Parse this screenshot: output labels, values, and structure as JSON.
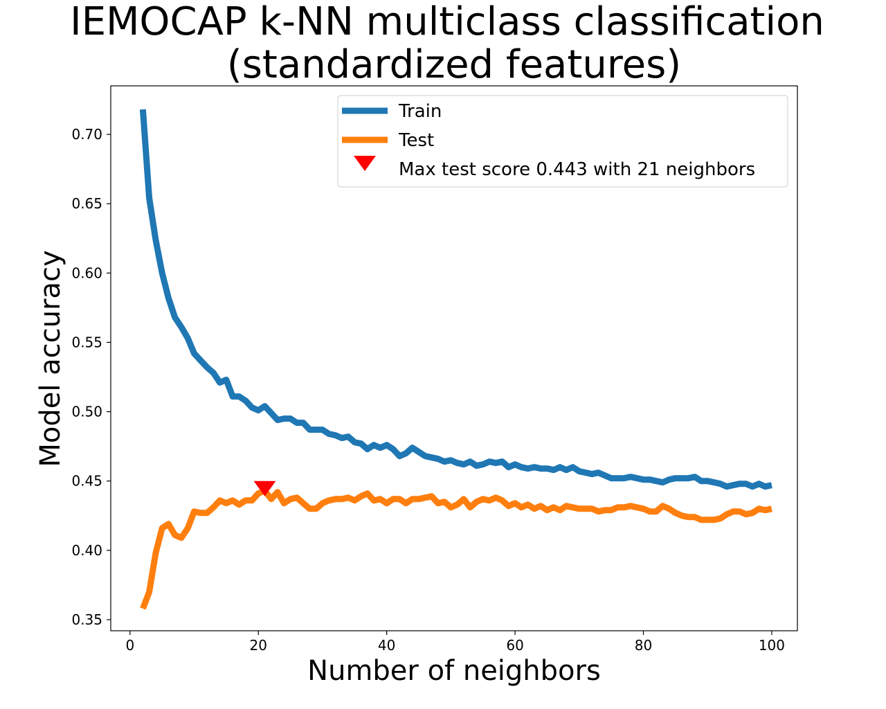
{
  "chart_data": {
    "type": "line",
    "title": "IEMOCAP k-NN multiclass classification",
    "subtitle": "(standardized features)",
    "xlabel": "Number of neighbors",
    "ylabel": "Model accuracy",
    "xlim": [
      -3,
      104
    ],
    "ylim": [
      0.342,
      0.735
    ],
    "x_ticks": [
      0,
      20,
      40,
      60,
      80,
      100
    ],
    "x_tick_labels": [
      "0",
      "20",
      "40",
      "60",
      "80",
      "100"
    ],
    "y_ticks": [
      0.35,
      0.4,
      0.45,
      0.5,
      0.55,
      0.6,
      0.65,
      0.7
    ],
    "y_tick_labels": [
      "0.35",
      "0.40",
      "0.45",
      "0.50",
      "0.55",
      "0.60",
      "0.65",
      "0.70"
    ],
    "grid": false,
    "legend_position": "top-right",
    "series": [
      {
        "name": "Train",
        "color": "#1f77b4",
        "x": [
          2,
          3,
          4,
          5,
          6,
          7,
          8,
          9,
          10,
          11,
          12,
          13,
          14,
          15,
          16,
          17,
          18,
          19,
          20,
          21,
          22,
          23,
          24,
          25,
          26,
          27,
          28,
          29,
          30,
          31,
          32,
          33,
          34,
          35,
          36,
          37,
          38,
          39,
          40,
          41,
          42,
          43,
          44,
          45,
          46,
          47,
          48,
          49,
          50,
          51,
          52,
          53,
          54,
          55,
          56,
          57,
          58,
          59,
          60,
          61,
          62,
          63,
          64,
          65,
          66,
          67,
          68,
          69,
          70,
          71,
          72,
          73,
          74,
          75,
          76,
          77,
          78,
          79,
          80,
          81,
          82,
          83,
          84,
          85,
          86,
          87,
          88,
          89,
          90,
          91,
          92,
          93,
          94,
          95,
          96,
          97,
          98,
          99,
          100
        ],
        "values": [
          0.718,
          0.654,
          0.624,
          0.6,
          0.582,
          0.568,
          0.561,
          0.553,
          0.542,
          0.537,
          0.532,
          0.528,
          0.521,
          0.523,
          0.511,
          0.511,
          0.508,
          0.503,
          0.501,
          0.504,
          0.499,
          0.494,
          0.495,
          0.495,
          0.492,
          0.492,
          0.487,
          0.487,
          0.487,
          0.484,
          0.483,
          0.481,
          0.482,
          0.478,
          0.477,
          0.473,
          0.476,
          0.474,
          0.476,
          0.473,
          0.468,
          0.47,
          0.474,
          0.471,
          0.468,
          0.467,
          0.466,
          0.464,
          0.465,
          0.463,
          0.462,
          0.464,
          0.461,
          0.462,
          0.464,
          0.463,
          0.464,
          0.46,
          0.462,
          0.46,
          0.459,
          0.46,
          0.459,
          0.459,
          0.458,
          0.46,
          0.458,
          0.46,
          0.457,
          0.456,
          0.455,
          0.456,
          0.454,
          0.452,
          0.452,
          0.452,
          0.453,
          0.452,
          0.451,
          0.451,
          0.45,
          0.449,
          0.451,
          0.452,
          0.452,
          0.452,
          0.453,
          0.45,
          0.45,
          0.449,
          0.448,
          0.446,
          0.447,
          0.448,
          0.448,
          0.446,
          0.448,
          0.446,
          0.447
        ]
      },
      {
        "name": "Test",
        "color": "#ff7f0e",
        "x": [
          2,
          3,
          4,
          5,
          6,
          7,
          8,
          9,
          10,
          11,
          12,
          13,
          14,
          15,
          16,
          17,
          18,
          19,
          20,
          21,
          22,
          23,
          24,
          25,
          26,
          27,
          28,
          29,
          30,
          31,
          32,
          33,
          34,
          35,
          36,
          37,
          38,
          39,
          40,
          41,
          42,
          43,
          44,
          45,
          46,
          47,
          48,
          49,
          50,
          51,
          52,
          53,
          54,
          55,
          56,
          57,
          58,
          59,
          60,
          61,
          62,
          63,
          64,
          65,
          66,
          67,
          68,
          69,
          70,
          71,
          72,
          73,
          74,
          75,
          76,
          77,
          78,
          79,
          80,
          81,
          82,
          83,
          84,
          85,
          86,
          87,
          88,
          89,
          90,
          91,
          92,
          93,
          94,
          95,
          96,
          97,
          98,
          99,
          100
        ],
        "values": [
          0.358,
          0.37,
          0.398,
          0.416,
          0.419,
          0.411,
          0.409,
          0.416,
          0.428,
          0.427,
          0.427,
          0.431,
          0.436,
          0.434,
          0.436,
          0.433,
          0.436,
          0.436,
          0.441,
          0.443,
          0.437,
          0.442,
          0.434,
          0.437,
          0.438,
          0.434,
          0.43,
          0.43,
          0.434,
          0.436,
          0.437,
          0.437,
          0.438,
          0.436,
          0.439,
          0.441,
          0.436,
          0.437,
          0.434,
          0.437,
          0.437,
          0.434,
          0.437,
          0.437,
          0.438,
          0.439,
          0.434,
          0.435,
          0.431,
          0.433,
          0.437,
          0.431,
          0.435,
          0.437,
          0.436,
          0.438,
          0.436,
          0.432,
          0.434,
          0.431,
          0.433,
          0.43,
          0.432,
          0.429,
          0.431,
          0.429,
          0.432,
          0.431,
          0.43,
          0.43,
          0.43,
          0.428,
          0.429,
          0.429,
          0.431,
          0.431,
          0.432,
          0.431,
          0.43,
          0.428,
          0.428,
          0.432,
          0.43,
          0.427,
          0.425,
          0.424,
          0.424,
          0.422,
          0.422,
          0.422,
          0.423,
          0.426,
          0.428,
          0.428,
          0.426,
          0.427,
          0.43,
          0.429,
          0.43
        ]
      }
    ],
    "marker": {
      "label": "Max test score 0.443 with 21 neighbors",
      "x": 21,
      "y": 0.443,
      "color": "#ff0000",
      "shape": "triangle-down"
    }
  }
}
